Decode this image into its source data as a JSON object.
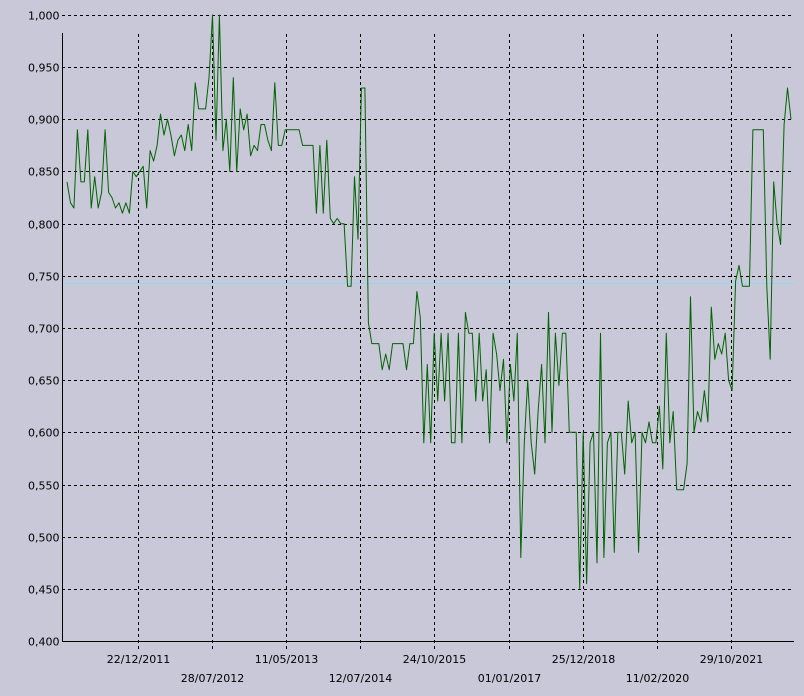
{
  "chart_data": {
    "type": "line",
    "title": "",
    "xlabel": "",
    "ylabel": "",
    "ylim": [
      0.4,
      1.0
    ],
    "grid": true,
    "y_ticks": [
      "0,400",
      "0,450",
      "0,500",
      "0,550",
      "0,600",
      "0,650",
      "0,700",
      "0,750",
      "0,800",
      "0,850",
      "0,900",
      "0,950",
      "1,000"
    ],
    "x_ticks": [
      "22/12/2011",
      "28/07/2012",
      "11/05/2013",
      "12/07/2014",
      "24/10/2015",
      "01/01/2017",
      "25/12/2018",
      "11/02/2020",
      "29/10/2021"
    ],
    "reference_line": {
      "value": 0.743,
      "color": "#7fe0f0"
    },
    "colors": {
      "background": "#c8c8d8",
      "series": "#006400",
      "grid": "#000000"
    },
    "series": [
      {
        "values": [
          0.84,
          0.82,
          0.815,
          0.89,
          0.84,
          0.84,
          0.89,
          0.815,
          0.845,
          0.815,
          0.83,
          0.89,
          0.83,
          0.825,
          0.815,
          0.82,
          0.81,
          0.82,
          0.81,
          0.85,
          0.845,
          0.85,
          0.855,
          0.815,
          0.87,
          0.86,
          0.875,
          0.905,
          0.885,
          0.9,
          0.885,
          0.865,
          0.88,
          0.885,
          0.87,
          0.895,
          0.87,
          0.935,
          0.91,
          0.91,
          0.91,
          0.94,
          1.0,
          0.88,
          1.0,
          0.87,
          0.9,
          0.85,
          0.94,
          0.85,
          0.91,
          0.89,
          0.905,
          0.865,
          0.875,
          0.87,
          0.895,
          0.895,
          0.88,
          0.87,
          0.935,
          0.875,
          0.875,
          0.89,
          0.89,
          0.89,
          0.89,
          0.89,
          0.875,
          0.875,
          0.875,
          0.875,
          0.81,
          0.875,
          0.81,
          0.88,
          0.805,
          0.8,
          0.805,
          0.8,
          0.8,
          0.74,
          0.74,
          0.845,
          0.785,
          0.93,
          0.93,
          0.705,
          0.685,
          0.685,
          0.685,
          0.66,
          0.675,
          0.66,
          0.685,
          0.685,
          0.685,
          0.685,
          0.66,
          0.685,
          0.685,
          0.735,
          0.71,
          0.59,
          0.665,
          0.59,
          0.695,
          0.63,
          0.695,
          0.63,
          0.695,
          0.59,
          0.59,
          0.695,
          0.59,
          0.715,
          0.695,
          0.695,
          0.63,
          0.695,
          0.63,
          0.66,
          0.59,
          0.695,
          0.675,
          0.64,
          0.67,
          0.59,
          0.665,
          0.63,
          0.695,
          0.48,
          0.59,
          0.65,
          0.59,
          0.56,
          0.62,
          0.665,
          0.59,
          0.715,
          0.6,
          0.695,
          0.645,
          0.695,
          0.695,
          0.6,
          0.6,
          0.6,
          0.45,
          0.6,
          0.455,
          0.59,
          0.6,
          0.475,
          0.695,
          0.48,
          0.59,
          0.6,
          0.485,
          0.6,
          0.6,
          0.56,
          0.63,
          0.59,
          0.6,
          0.485,
          0.6,
          0.59,
          0.61,
          0.59,
          0.59,
          0.625,
          0.565,
          0.695,
          0.59,
          0.62,
          0.545,
          0.545,
          0.545,
          0.57,
          0.73,
          0.6,
          0.62,
          0.61,
          0.64,
          0.61,
          0.72,
          0.67,
          0.685,
          0.675,
          0.695,
          0.65,
          0.64,
          0.745,
          0.76,
          0.74,
          0.74,
          0.74,
          0.89,
          0.89,
          0.89,
          0.89,
          0.74,
          0.67,
          0.84,
          0.8,
          0.78,
          0.895,
          0.93,
          0.9
        ]
      }
    ]
  }
}
